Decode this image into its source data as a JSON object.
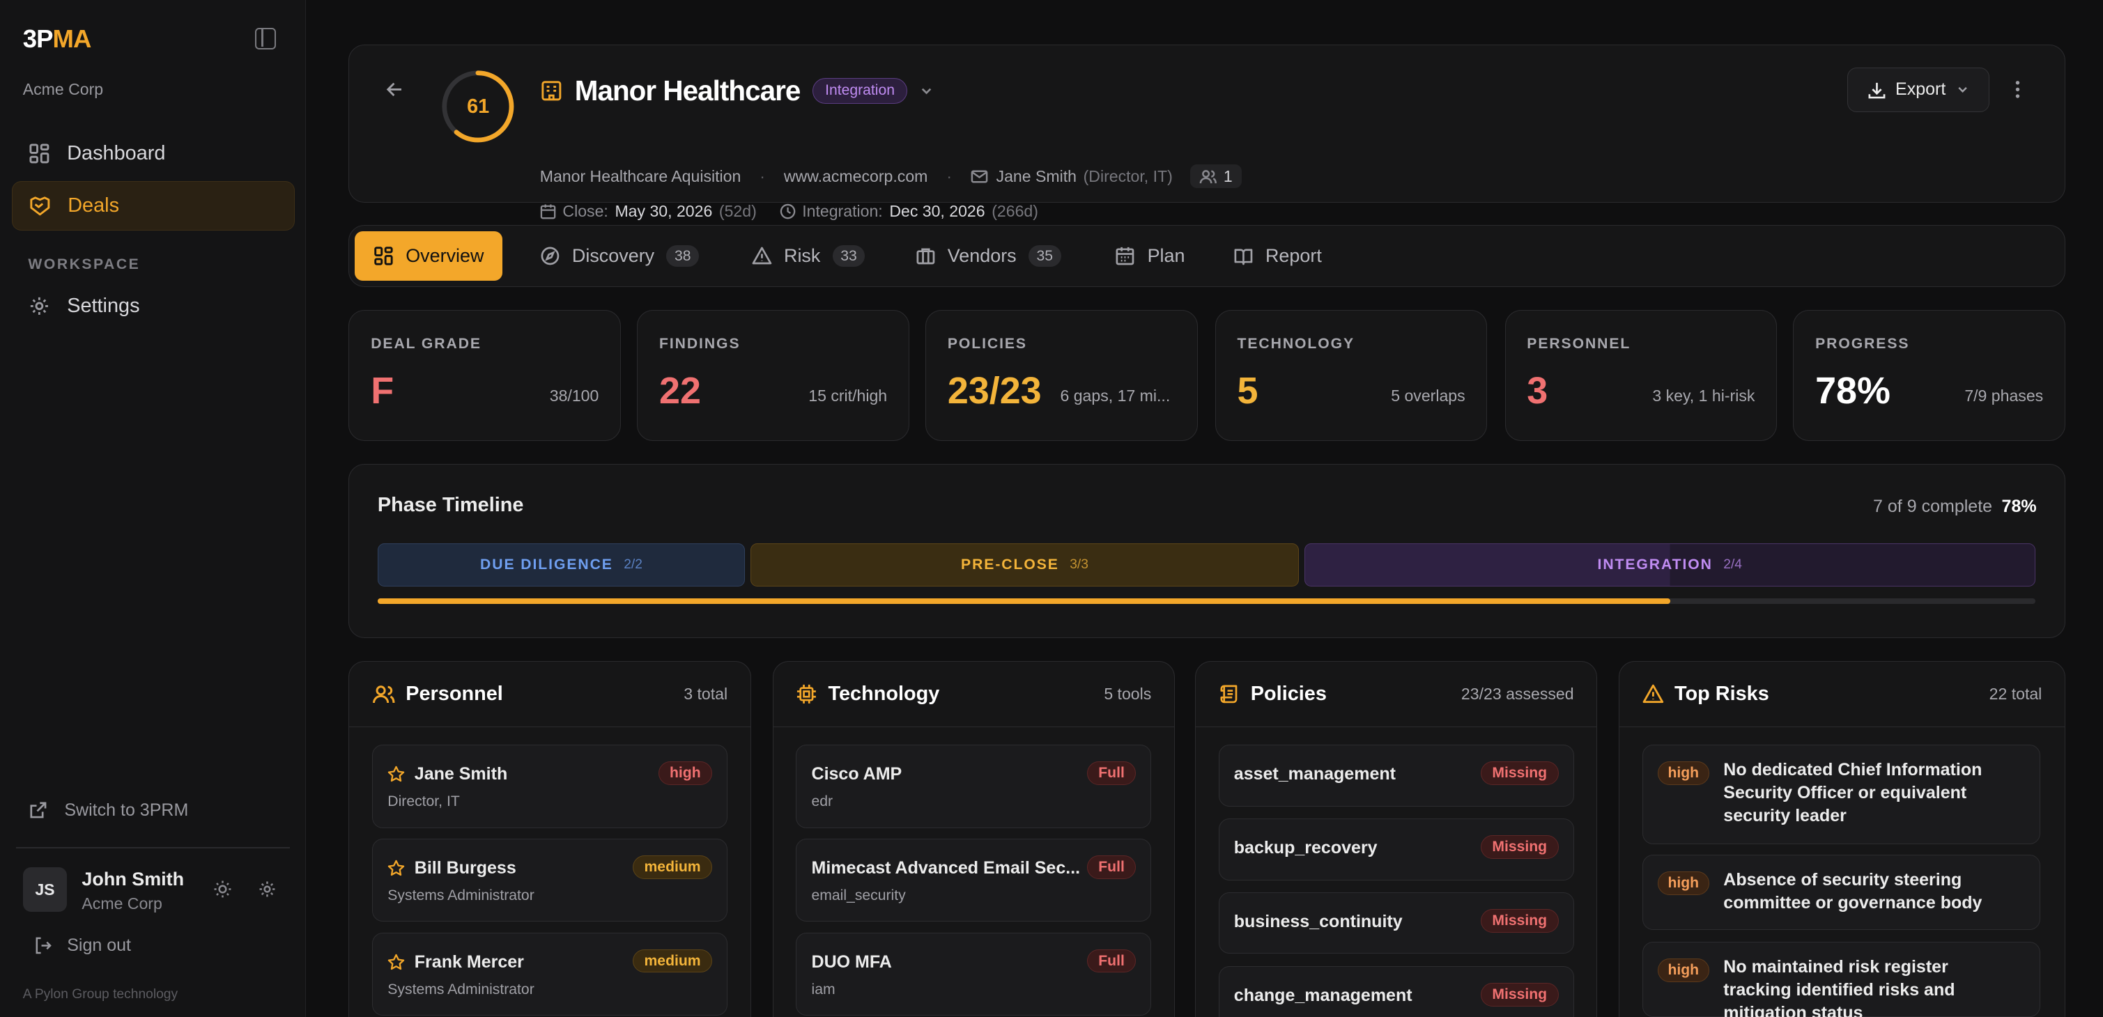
{
  "brand": {
    "prefix": "3P",
    "suffix": "MA"
  },
  "org_name": "Acme Corp",
  "nav": {
    "dashboard": "Dashboard",
    "deals": "Deals",
    "workspace_label": "WORKSPACE",
    "settings": "Settings"
  },
  "sidebar_footer": {
    "switch": "Switch to 3PRM",
    "avatar_initials": "JS",
    "user_name": "John Smith",
    "user_org": "Acme Corp",
    "sign_out": "Sign out",
    "credit": "A Pylon Group technology"
  },
  "deal": {
    "score": "61",
    "score_fraction": 0.61,
    "title": "Manor Healthcare",
    "stage_badge": "Integration",
    "description": "Manor Healthcare Aquisition",
    "website": "www.acmecorp.com",
    "contact_name": "Jane Smith",
    "contact_title": "(Director, IT)",
    "people_count": "1",
    "close_label": "Close:",
    "close_date": "May 30, 2026",
    "close_days": "(52d)",
    "integration_label": "Integration:",
    "integration_date": "Dec 30, 2026",
    "integration_days": "(266d)",
    "export_label": "Export"
  },
  "tabs": [
    {
      "label": "Overview",
      "count": ""
    },
    {
      "label": "Discovery",
      "count": "38"
    },
    {
      "label": "Risk",
      "count": "33"
    },
    {
      "label": "Vendors",
      "count": "35"
    },
    {
      "label": "Plan",
      "count": ""
    },
    {
      "label": "Report",
      "count": ""
    }
  ],
  "stats": [
    {
      "label": "DEAL GRADE",
      "value": "F",
      "sub": "38/100",
      "color": "#f07171"
    },
    {
      "label": "FINDINGS",
      "value": "22",
      "sub": "15 crit/high",
      "color": "#f07171"
    },
    {
      "label": "POLICIES",
      "value": "23/23",
      "sub": "6 gaps, 17 mi...",
      "color": "#f3b43a"
    },
    {
      "label": "TECHNOLOGY",
      "value": "5",
      "sub": "5 overlaps",
      "color": "#f3b43a"
    },
    {
      "label": "PERSONNEL",
      "value": "3",
      "sub": "3 key, 1 hi-risk",
      "color": "#f07171"
    },
    {
      "label": "PROGRESS",
      "value": "78%",
      "sub": "7/9 phases",
      "color": "#ffffff"
    }
  ],
  "timeline": {
    "title": "Phase Timeline",
    "summary": "7 of 9 complete",
    "percent": "78%",
    "progress": 0.78,
    "phases": [
      {
        "name": "DUE DILIGENCE",
        "frac": "2/2",
        "color": "#6f9ff0"
      },
      {
        "name": "PRE-CLOSE",
        "frac": "3/3",
        "color": "#f3b43a"
      },
      {
        "name": "INTEGRATION",
        "frac": "2/4",
        "color": "#c08cf2"
      }
    ]
  },
  "personnel": {
    "title": "Personnel",
    "count": "3 total",
    "items": [
      {
        "name": "Jane Smith",
        "role": "Director, IT",
        "level": "high"
      },
      {
        "name": "Bill Burgess",
        "role": "Systems Administrator",
        "level": "medium"
      },
      {
        "name": "Frank Mercer",
        "role": "Systems Administrator",
        "level": "medium"
      }
    ]
  },
  "technology": {
    "title": "Technology",
    "count": "5 tools",
    "items": [
      {
        "name": "Cisco AMP",
        "category": "edr",
        "overlap": "Full"
      },
      {
        "name": "Mimecast Advanced Email Sec...",
        "category": "email_security",
        "overlap": "Full"
      },
      {
        "name": "DUO MFA",
        "category": "iam",
        "overlap": "Full"
      }
    ]
  },
  "policies": {
    "title": "Policies",
    "count": "23/23 assessed",
    "items": [
      {
        "name": "asset_management",
        "status": "Missing"
      },
      {
        "name": "backup_recovery",
        "status": "Missing"
      },
      {
        "name": "business_continuity",
        "status": "Missing"
      },
      {
        "name": "change_management",
        "status": "Missing"
      }
    ]
  },
  "risks": {
    "title": "Top Risks",
    "count": "22 total",
    "items": [
      {
        "severity": "high",
        "text": "No dedicated Chief Information Security Officer or equivalent security leader"
      },
      {
        "severity": "high",
        "text": "Absence of security steering committee or governance body"
      },
      {
        "severity": "high",
        "text": "No maintained risk register tracking identified risks and mitigation status"
      }
    ]
  }
}
